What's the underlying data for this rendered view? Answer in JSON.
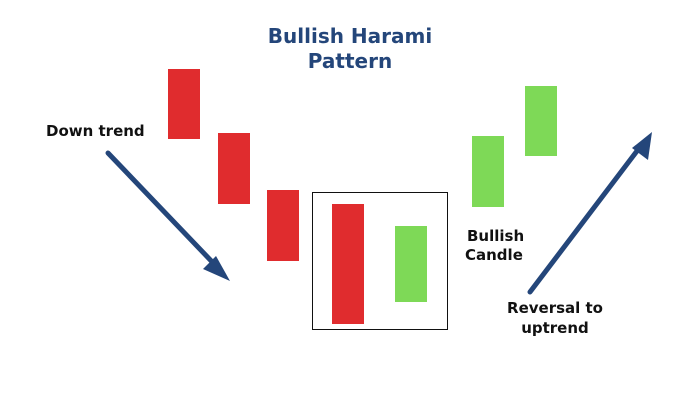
{
  "title": {
    "line1": "Bullish Harami",
    "line2": "Pattern"
  },
  "labels": {
    "down_trend": "Down trend",
    "bullish_candle_line1": "Bullish",
    "bullish_candle_line2": "Candle",
    "reversal_line1": "Reversal to",
    "reversal_line2": "uptrend"
  },
  "colors": {
    "bearish": "#e02c2e",
    "bullish": "#7ed957",
    "arrow": "#24467a",
    "title": "#24467a"
  },
  "candles": [
    {
      "type": "bearish"
    },
    {
      "type": "bearish"
    },
    {
      "type": "bearish"
    },
    {
      "type": "bearish",
      "role": "harami-mother"
    },
    {
      "type": "bullish",
      "role": "harami-baby"
    },
    {
      "type": "bullish"
    },
    {
      "type": "bullish"
    }
  ]
}
